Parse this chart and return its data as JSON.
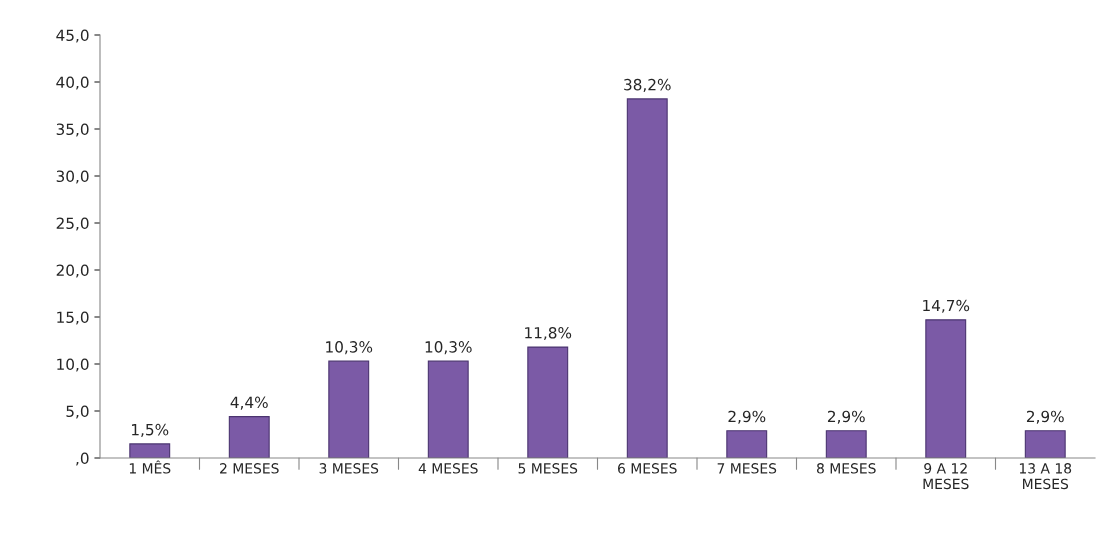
{
  "chart_data": {
    "type": "bar",
    "categories": [
      "1 MÊS",
      "2 MESES",
      "3 MESES",
      "4 MESES",
      "5 MESES",
      "6 MESES",
      "7 MESES",
      "8 MESES",
      "9 A 12\nMESES",
      "13 A 18\nMESES"
    ],
    "values": [
      1.5,
      4.4,
      10.3,
      10.3,
      11.8,
      38.2,
      2.9,
      2.9,
      14.7,
      2.9
    ],
    "value_labels": [
      "1,5%",
      "4,4%",
      "10,3%",
      "10,3%",
      "11,8%",
      "38,2%",
      "2,9%",
      "2,9%",
      "14,7%",
      "2,9%"
    ],
    "color": "#7b5aa6",
    "ylim": [
      0,
      45
    ],
    "yticks": [
      {
        "value": 0,
        "label": ",0"
      },
      {
        "value": 5,
        "label": "5,0"
      },
      {
        "value": 10,
        "label": "10,0"
      },
      {
        "value": 15,
        "label": "15,0"
      },
      {
        "value": 20,
        "label": "20,0"
      },
      {
        "value": 25,
        "label": "25,0"
      },
      {
        "value": 30,
        "label": "30,0"
      },
      {
        "value": 35,
        "label": "35,0"
      },
      {
        "value": 40,
        "label": "40,0"
      },
      {
        "value": 45,
        "label": "45,0"
      }
    ],
    "grid": false
  }
}
